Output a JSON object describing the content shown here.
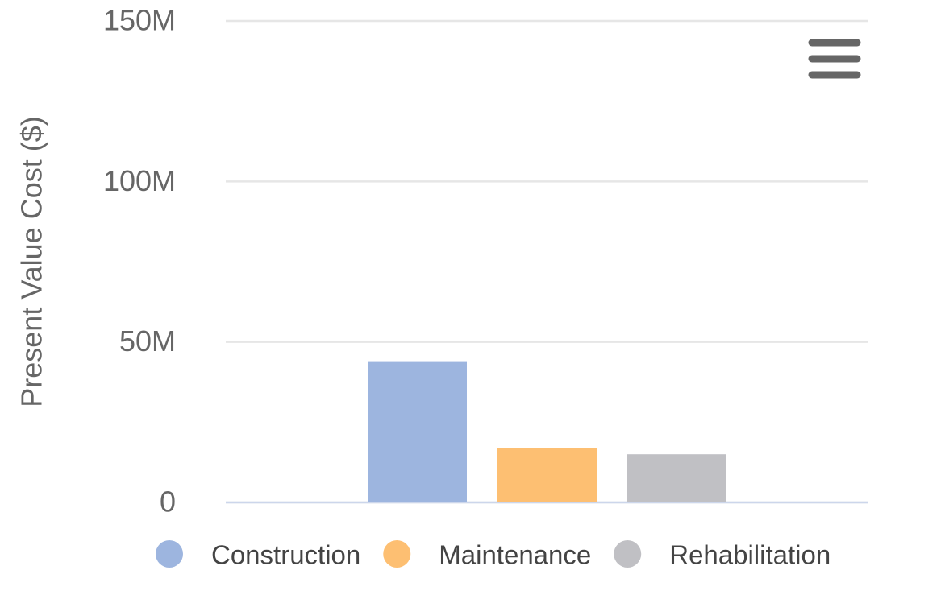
{
  "chart_data": {
    "type": "bar",
    "y_axis_title": "Present Value Cost ($)",
    "categories": [
      null
    ],
    "series": [
      {
        "name": "Construction",
        "color": "#9db5df",
        "values": [
          44000000
        ]
      },
      {
        "name": "Maintenance",
        "color": "#fdbf72",
        "values": [
          17000000
        ]
      },
      {
        "name": "Rehabilitation",
        "color": "#c0c0c4",
        "values": [
          15000000
        ]
      }
    ],
    "ylim": [
      0,
      150000000
    ],
    "yticks": [
      0,
      {
        "value": 50000000,
        "label": "50M"
      },
      {
        "value": 100000000,
        "label": "100M"
      },
      {
        "value": 150000000,
        "label": "150M"
      }
    ],
    "grid": true
  }
}
